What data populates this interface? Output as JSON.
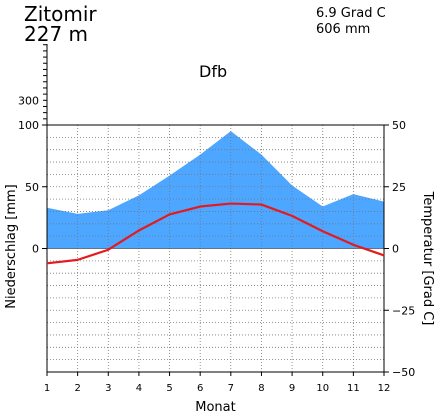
{
  "header": {
    "station": "Zitomir",
    "elevation": "227 m",
    "mean_temperature": "6.9 Grad C",
    "annual_precipitation": "606 mm",
    "climate_class": "Dfb"
  },
  "chart_data": {
    "type": "line",
    "title": "",
    "xlabel": "Monat",
    "ylabel_left": "Niederschlag [mm]",
    "ylabel_right": "Temperatur [Grad C]",
    "x": [
      1,
      2,
      3,
      4,
      5,
      6,
      7,
      8,
      9,
      10,
      11,
      12
    ],
    "x_tick_labels": [
      "1",
      "2",
      "3",
      "4",
      "5",
      "6",
      "7",
      "8",
      "9",
      "10",
      "11",
      "12"
    ],
    "xlim": [
      1,
      12
    ],
    "precip_ylim": [
      -100,
      100
    ],
    "precip_ticks": [
      0,
      50,
      100
    ],
    "precip_extra_tick": 300,
    "temp_ylim": [
      -50,
      50
    ],
    "temp_ticks": [
      -50,
      -25,
      0,
      25,
      50
    ],
    "grid": true,
    "series": [
      {
        "axis": "left",
        "kind": "area",
        "color": "#4da6ff",
        "values": [
          33,
          28,
          31,
          43,
          59,
          76,
          95,
          76,
          51,
          34,
          44,
          38
        ]
      },
      {
        "axis": "right",
        "kind": "line",
        "color": "#e41a1c",
        "values": [
          -6.0,
          -4.6,
          -0.5,
          7.3,
          13.8,
          17.0,
          18.2,
          17.8,
          13.2,
          7.0,
          1.5,
          -2.8
        ]
      }
    ]
  }
}
